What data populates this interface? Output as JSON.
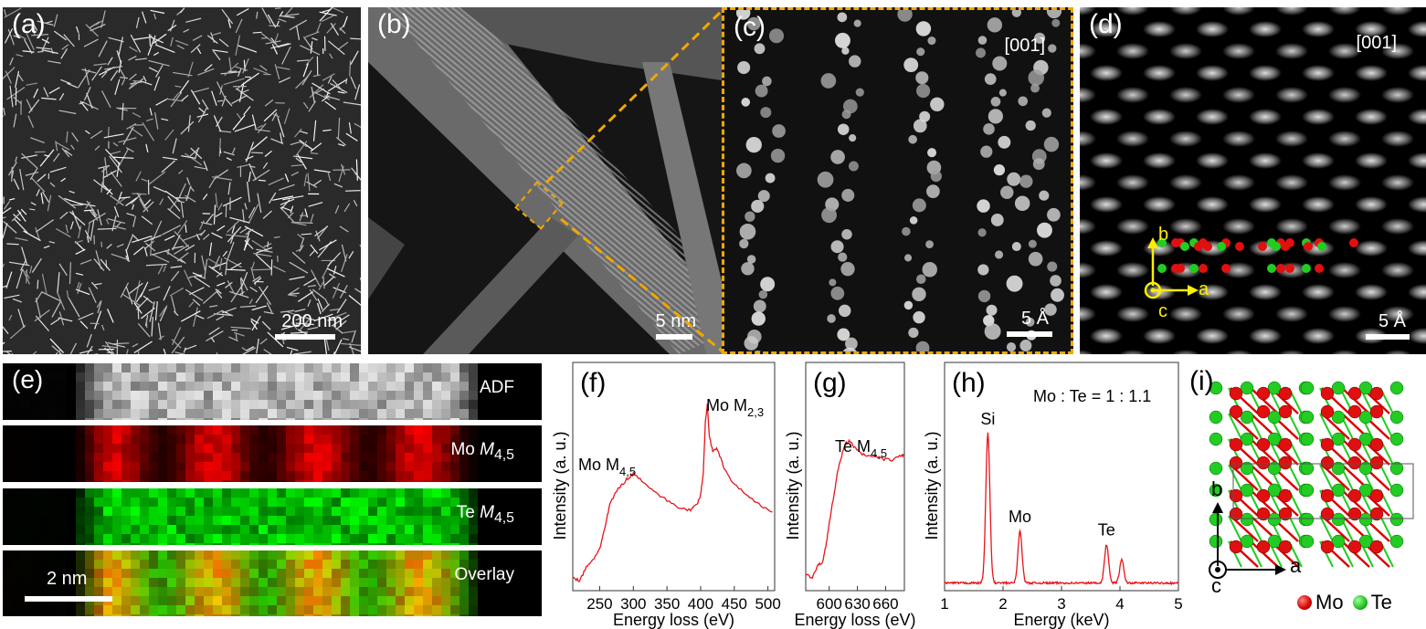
{
  "panels": {
    "a": {
      "label": "(a)",
      "scale_bar": "200 nm"
    },
    "b": {
      "label": "(b)",
      "scale_bar": "5 nm"
    },
    "c": {
      "label": "(c)",
      "zone_axis": "[001]",
      "scale_bar": "5 Å"
    },
    "d": {
      "label": "(d)",
      "zone_axis": "[001]",
      "scale_bar": "5 Å",
      "axes": {
        "b": "b",
        "a": "a",
        "c": "c"
      }
    },
    "e": {
      "label": "(e)",
      "strips": [
        "ADF",
        "Mo",
        "Te",
        "Overlay"
      ],
      "edge_sub": "4,5",
      "edge_italic": "M",
      "scale_bar": "2 nm"
    },
    "i": {
      "label": "(i)",
      "axes": {
        "b": "b",
        "a": "a",
        "c": "c"
      },
      "legend": [
        "Mo",
        "Te"
      ]
    }
  },
  "colors": {
    "mo": "#e01010",
    "te": "#22cc22",
    "highlight": "#f0a800",
    "curve": "#e8141a",
    "axis_yellow": "#ffee00"
  },
  "chart_data": [
    {
      "id": "f",
      "type": "line",
      "title": "(f)",
      "xlabel": "Energy loss (eV)",
      "ylabel": "Intensity (a. u.)",
      "xlim": [
        210,
        510
      ],
      "ylim": [
        0,
        1
      ],
      "xticks": [
        250,
        300,
        350,
        400,
        450,
        500
      ],
      "annotations": [
        {
          "text": "Mo M",
          "sub": "4,5"
        },
        {
          "text": "Mo M",
          "sub": "2,3"
        }
      ],
      "x": [
        210,
        220,
        230,
        240,
        250,
        258,
        265,
        275,
        290,
        300,
        315,
        330,
        350,
        370,
        385,
        395,
        400,
        404,
        407,
        410,
        413,
        418,
        425,
        435,
        450,
        470,
        490,
        510
      ],
      "y": [
        0.07,
        0.05,
        0.12,
        0.16,
        0.22,
        0.33,
        0.45,
        0.52,
        0.58,
        0.61,
        0.57,
        0.52,
        0.47,
        0.43,
        0.42,
        0.45,
        0.5,
        0.62,
        0.88,
        0.97,
        0.8,
        0.73,
        0.74,
        0.64,
        0.55,
        0.5,
        0.44,
        0.4
      ]
    },
    {
      "id": "g",
      "type": "line",
      "title": "(g)",
      "xlabel": "Energy loss (eV)",
      "ylabel": "Intensity (a. u.)",
      "xlim": [
        575,
        680
      ],
      "ylim": [
        0,
        1
      ],
      "xticks": [
        600,
        630,
        660
      ],
      "annotations": [
        {
          "text": "Te M",
          "sub": "4,5"
        }
      ],
      "x": [
        575,
        582,
        588,
        593,
        597,
        601,
        605,
        609,
        614,
        618,
        622,
        628,
        635,
        645,
        655,
        665,
        675,
        680
      ],
      "y": [
        0.08,
        0.07,
        0.13,
        0.15,
        0.25,
        0.38,
        0.5,
        0.62,
        0.72,
        0.77,
        0.78,
        0.74,
        0.71,
        0.7,
        0.69,
        0.68,
        0.7,
        0.71
      ]
    },
    {
      "id": "h",
      "type": "line",
      "title": "(h)",
      "xlabel": "Energy (keV)",
      "ylabel": "Intensity (a. u.)",
      "xlim": [
        1,
        5
      ],
      "ylim": [
        0,
        1
      ],
      "xticks": [
        1,
        2,
        3,
        4,
        5
      ],
      "note": "Mo : Te = 1 : 1.1",
      "baseline": 0.04,
      "peaks": [
        {
          "label": "Si",
          "x": 1.74,
          "y": 0.78
        },
        {
          "label": "Mo",
          "x": 2.29,
          "y": 0.27
        },
        {
          "label": "Te",
          "x": 3.77,
          "y": 0.2
        },
        {
          "label": "",
          "x": 4.03,
          "y": 0.12
        }
      ]
    }
  ]
}
